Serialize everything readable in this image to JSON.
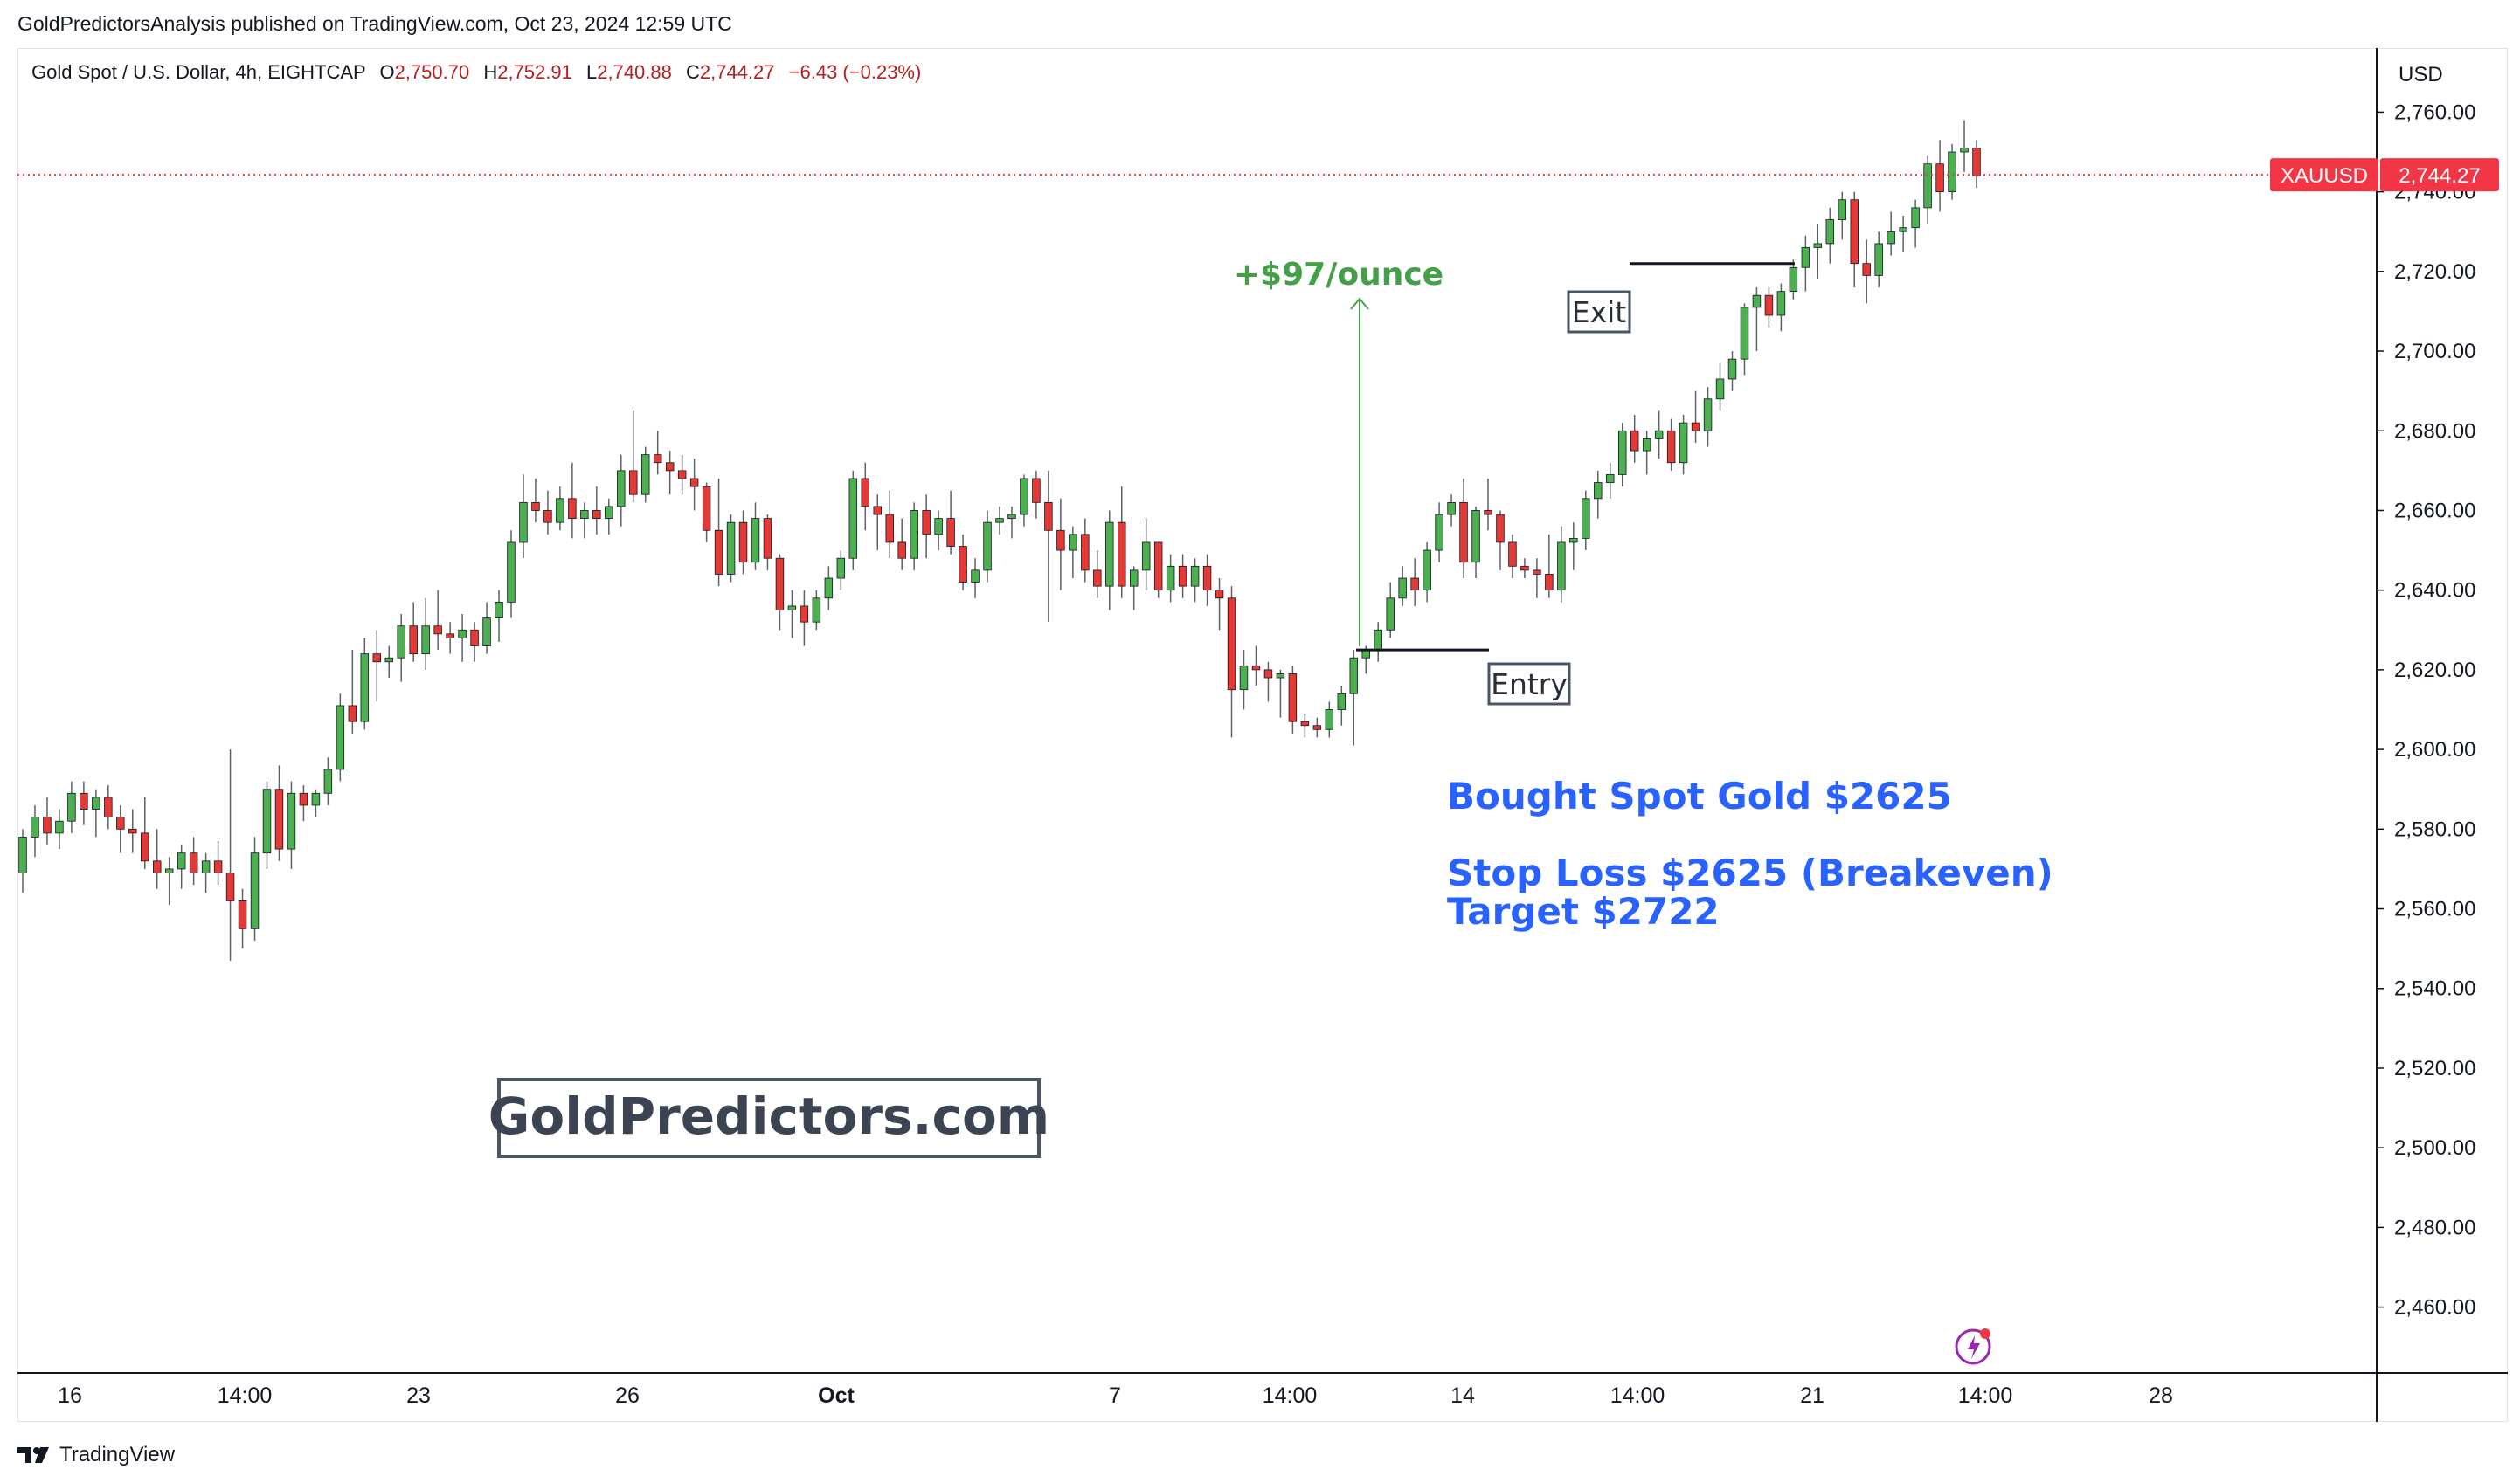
{
  "publication": {
    "text": "GoldPredictorsAnalysis published on TradingView.com, Oct 23, 2024 12:59 UTC"
  },
  "legend": {
    "symbol_desc": "Gold Spot / U.S. Dollar, 4h, EIGHTCAP",
    "open_label": "O",
    "open": "2,750.70",
    "high_label": "H",
    "high": "2,752.91",
    "low_label": "L",
    "low": "2,740.88",
    "close_label": "C",
    "close": "2,744.27",
    "change": "−6.43 (−0.23%)"
  },
  "axis": {
    "currency": "USD",
    "symbol_tag": "XAUUSD",
    "last_price": "2,744.27"
  },
  "annotations": {
    "entry": "Entry",
    "exit": "Exit",
    "profit": "+$97/ounce",
    "trade_line1": "Bought Spot Gold $2625",
    "trade_line2": "Stop Loss $2625 (Breakeven)",
    "trade_line3": "Target $2722",
    "watermark": "GoldPredictors.com"
  },
  "footer": {
    "brand": "TradingView"
  },
  "colors": {
    "up": "#26a69a",
    "up_fill": "#4caf50",
    "down": "#e53935",
    "annotation_blue": "#2962ff",
    "profit_green": "#43a047",
    "tag_red": "#f23645",
    "box_border": "#4a5568"
  },
  "chart_data": {
    "type": "candlestick",
    "timeframe": "4h",
    "ylim": [
      2445,
      2775
    ],
    "y_ticks": [
      "2,460.00",
      "2,480.00",
      "2,500.00",
      "2,520.00",
      "2,540.00",
      "2,560.00",
      "2,580.00",
      "2,600.00",
      "2,620.00",
      "2,640.00",
      "2,660.00",
      "2,680.00",
      "2,700.00",
      "2,720.00",
      "2,740.00",
      "2,760.00"
    ],
    "x_tick_labels": [
      "16",
      "14:00",
      "23",
      "26",
      "Oct",
      "7",
      "14:00",
      "14",
      "14:00",
      "21",
      "14:00",
      "28"
    ],
    "last_price": 2744.27,
    "entry_price": 2625,
    "exit_price": 2722,
    "candles": [
      [
        2569,
        2580,
        2564,
        2578
      ],
      [
        2578,
        2586,
        2573,
        2583
      ],
      [
        2583,
        2588,
        2576,
        2579
      ],
      [
        2579,
        2585,
        2575,
        2582
      ],
      [
        2582,
        2592,
        2579,
        2589
      ],
      [
        2589,
        2592,
        2581,
        2585
      ],
      [
        2585,
        2590,
        2578,
        2588
      ],
      [
        2588,
        2591,
        2580,
        2583
      ],
      [
        2583,
        2586,
        2574,
        2580
      ],
      [
        2580,
        2585,
        2574,
        2579
      ],
      [
        2579,
        2588,
        2570,
        2572
      ],
      [
        2572,
        2580,
        2565,
        2569
      ],
      [
        2569,
        2573,
        2561,
        2570
      ],
      [
        2570,
        2576,
        2565,
        2574
      ],
      [
        2574,
        2578,
        2566,
        2569
      ],
      [
        2569,
        2574,
        2564,
        2572
      ],
      [
        2572,
        2577,
        2566,
        2569
      ],
      [
        2569,
        2600,
        2547,
        2562
      ],
      [
        2562,
        2565,
        2550,
        2555
      ],
      [
        2555,
        2578,
        2552,
        2574
      ],
      [
        2574,
        2592,
        2570,
        2590
      ],
      [
        2590,
        2596,
        2572,
        2575
      ],
      [
        2575,
        2592,
        2570,
        2589
      ],
      [
        2589,
        2591,
        2582,
        2586
      ],
      [
        2586,
        2590,
        2583,
        2589
      ],
      [
        2589,
        2598,
        2586,
        2595
      ],
      [
        2595,
        2614,
        2592,
        2611
      ],
      [
        2611,
        2625,
        2604,
        2607
      ],
      [
        2607,
        2628,
        2605,
        2624
      ],
      [
        2624,
        2630,
        2612,
        2622
      ],
      [
        2622,
        2626,
        2618,
        2623
      ],
      [
        2623,
        2634,
        2617,
        2631
      ],
      [
        2631,
        2637,
        2622,
        2624
      ],
      [
        2624,
        2638,
        2620,
        2631
      ],
      [
        2631,
        2640,
        2625,
        2629
      ],
      [
        2629,
        2632,
        2624,
        2628
      ],
      [
        2628,
        2634,
        2622,
        2630
      ],
      [
        2630,
        2632,
        2622,
        2626
      ],
      [
        2626,
        2637,
        2624,
        2633
      ],
      [
        2633,
        2640,
        2627,
        2637
      ],
      [
        2637,
        2655,
        2633,
        2652
      ],
      [
        2652,
        2669,
        2648,
        2662
      ],
      [
        2662,
        2668,
        2657,
        2660
      ],
      [
        2660,
        2665,
        2654,
        2657
      ],
      [
        2657,
        2666,
        2655,
        2663
      ],
      [
        2663,
        2672,
        2653,
        2658
      ],
      [
        2658,
        2662,
        2653,
        2660
      ],
      [
        2660,
        2666,
        2654,
        2658
      ],
      [
        2658,
        2663,
        2654,
        2661
      ],
      [
        2661,
        2674,
        2656,
        2670
      ],
      [
        2670,
        2685,
        2662,
        2664
      ],
      [
        2664,
        2676,
        2662,
        2674
      ],
      [
        2674,
        2680,
        2669,
        2672
      ],
      [
        2672,
        2675,
        2664,
        2670
      ],
      [
        2670,
        2674,
        2664,
        2668
      ],
      [
        2668,
        2673,
        2660,
        2666
      ],
      [
        2666,
        2667,
        2652,
        2655
      ],
      [
        2655,
        2668,
        2641,
        2644
      ],
      [
        2644,
        2659,
        2642,
        2657
      ],
      [
        2657,
        2660,
        2644,
        2647
      ],
      [
        2647,
        2662,
        2645,
        2658
      ],
      [
        2658,
        2659,
        2645,
        2648
      ],
      [
        2648,
        2649,
        2630,
        2635
      ],
      [
        2635,
        2640,
        2628,
        2636
      ],
      [
        2636,
        2640,
        2626,
        2632
      ],
      [
        2632,
        2640,
        2630,
        2638
      ],
      [
        2638,
        2646,
        2635,
        2643
      ],
      [
        2643,
        2650,
        2640,
        2648
      ],
      [
        2648,
        2670,
        2645,
        2668
      ],
      [
        2668,
        2672,
        2655,
        2661
      ],
      [
        2661,
        2664,
        2650,
        2659
      ],
      [
        2659,
        2665,
        2648,
        2652
      ],
      [
        2652,
        2658,
        2645,
        2648
      ],
      [
        2648,
        2662,
        2645,
        2660
      ],
      [
        2660,
        2664,
        2648,
        2654
      ],
      [
        2654,
        2660,
        2650,
        2658
      ],
      [
        2658,
        2665,
        2649,
        2651
      ],
      [
        2651,
        2654,
        2640,
        2642
      ],
      [
        2642,
        2648,
        2638,
        2645
      ],
      [
        2645,
        2660,
        2642,
        2657
      ],
      [
        2657,
        2661,
        2654,
        2658
      ],
      [
        2658,
        2661,
        2653,
        2659
      ],
      [
        2659,
        2669,
        2656,
        2668
      ],
      [
        2668,
        2670,
        2658,
        2662
      ],
      [
        2662,
        2670,
        2632,
        2655
      ],
      [
        2655,
        2663,
        2640,
        2650
      ],
      [
        2650,
        2656,
        2643,
        2654
      ],
      [
        2654,
        2658,
        2642,
        2645
      ],
      [
        2645,
        2650,
        2638,
        2641
      ],
      [
        2641,
        2660,
        2635,
        2657
      ],
      [
        2657,
        2666,
        2638,
        2641
      ],
      [
        2641,
        2646,
        2635,
        2645
      ],
      [
        2645,
        2658,
        2640,
        2652
      ],
      [
        2652,
        2652,
        2638,
        2640
      ],
      [
        2640,
        2649,
        2637,
        2646
      ],
      [
        2646,
        2649,
        2638,
        2641
      ],
      [
        2641,
        2648,
        2637,
        2646
      ],
      [
        2646,
        2649,
        2636,
        2640
      ],
      [
        2640,
        2643,
        2630,
        2638
      ],
      [
        2638,
        2641,
        2603,
        2615
      ],
      [
        2615,
        2625,
        2610,
        2621
      ],
      [
        2621,
        2626,
        2616,
        2620
      ],
      [
        2620,
        2622,
        2612,
        2618
      ],
      [
        2618,
        2620,
        2608,
        2619
      ],
      [
        2619,
        2621,
        2604,
        2607
      ],
      [
        2607,
        2609,
        2603,
        2606
      ],
      [
        2606,
        2608,
        2603,
        2605
      ],
      [
        2605,
        2612,
        2603,
        2610
      ],
      [
        2610,
        2616,
        2606,
        2614
      ],
      [
        2614,
        2625,
        2601,
        2623
      ],
      [
        2623,
        2626,
        2619,
        2625
      ],
      [
        2625,
        2632,
        2622,
        2630
      ],
      [
        2630,
        2642,
        2628,
        2638
      ],
      [
        2638,
        2646,
        2636,
        2643
      ],
      [
        2643,
        2648,
        2636,
        2640
      ],
      [
        2640,
        2652,
        2637,
        2650
      ],
      [
        2650,
        2662,
        2647,
        2659
      ],
      [
        2659,
        2664,
        2656,
        2662
      ],
      [
        2662,
        2668,
        2643,
        2647
      ],
      [
        2647,
        2661,
        2643,
        2660
      ],
      [
        2660,
        2668,
        2655,
        2659
      ],
      [
        2659,
        2660,
        2645,
        2652
      ],
      [
        2652,
        2654,
        2643,
        2646
      ],
      [
        2646,
        2648,
        2643,
        2645
      ],
      [
        2645,
        2648,
        2638,
        2644
      ],
      [
        2644,
        2654,
        2638,
        2640
      ],
      [
        2640,
        2656,
        2637,
        2652
      ],
      [
        2652,
        2657,
        2645,
        2653
      ],
      [
        2653,
        2665,
        2650,
        2663
      ],
      [
        2663,
        2670,
        2658,
        2667
      ],
      [
        2667,
        2672,
        2663,
        2669
      ],
      [
        2669,
        2682,
        2666,
        2680
      ],
      [
        2680,
        2684,
        2672,
        2675
      ],
      [
        2675,
        2680,
        2669,
        2678
      ],
      [
        2678,
        2685,
        2673,
        2680
      ],
      [
        2680,
        2683,
        2670,
        2672
      ],
      [
        2672,
        2684,
        2669,
        2682
      ],
      [
        2682,
        2690,
        2677,
        2680
      ],
      [
        2680,
        2691,
        2676,
        2688
      ],
      [
        2688,
        2697,
        2685,
        2693
      ],
      [
        2693,
        2700,
        2690,
        2698
      ],
      [
        2698,
        2712,
        2694,
        2711
      ],
      [
        2711,
        2716,
        2700,
        2714
      ],
      [
        2714,
        2716,
        2706,
        2709
      ],
      [
        2709,
        2717,
        2705,
        2715
      ],
      [
        2715,
        2723,
        2713,
        2721
      ],
      [
        2721,
        2729,
        2715,
        2726
      ],
      [
        2726,
        2732,
        2718,
        2727
      ],
      [
        2727,
        2736,
        2722,
        2733
      ],
      [
        2733,
        2740,
        2728,
        2738
      ],
      [
        2738,
        2740,
        2716,
        2722
      ],
      [
        2722,
        2728,
        2712,
        2719
      ],
      [
        2719,
        2730,
        2716,
        2727
      ],
      [
        2727,
        2735,
        2724,
        2730
      ],
      [
        2730,
        2734,
        2725,
        2731
      ],
      [
        2731,
        2738,
        2726,
        2736
      ],
      [
        2736,
        2749,
        2732,
        2747
      ],
      [
        2747,
        2753,
        2735,
        2740
      ],
      [
        2740,
        2752,
        2738,
        2750
      ],
      [
        2750,
        2758,
        2745,
        2751
      ],
      [
        2751,
        2753,
        2741,
        2744
      ]
    ]
  }
}
